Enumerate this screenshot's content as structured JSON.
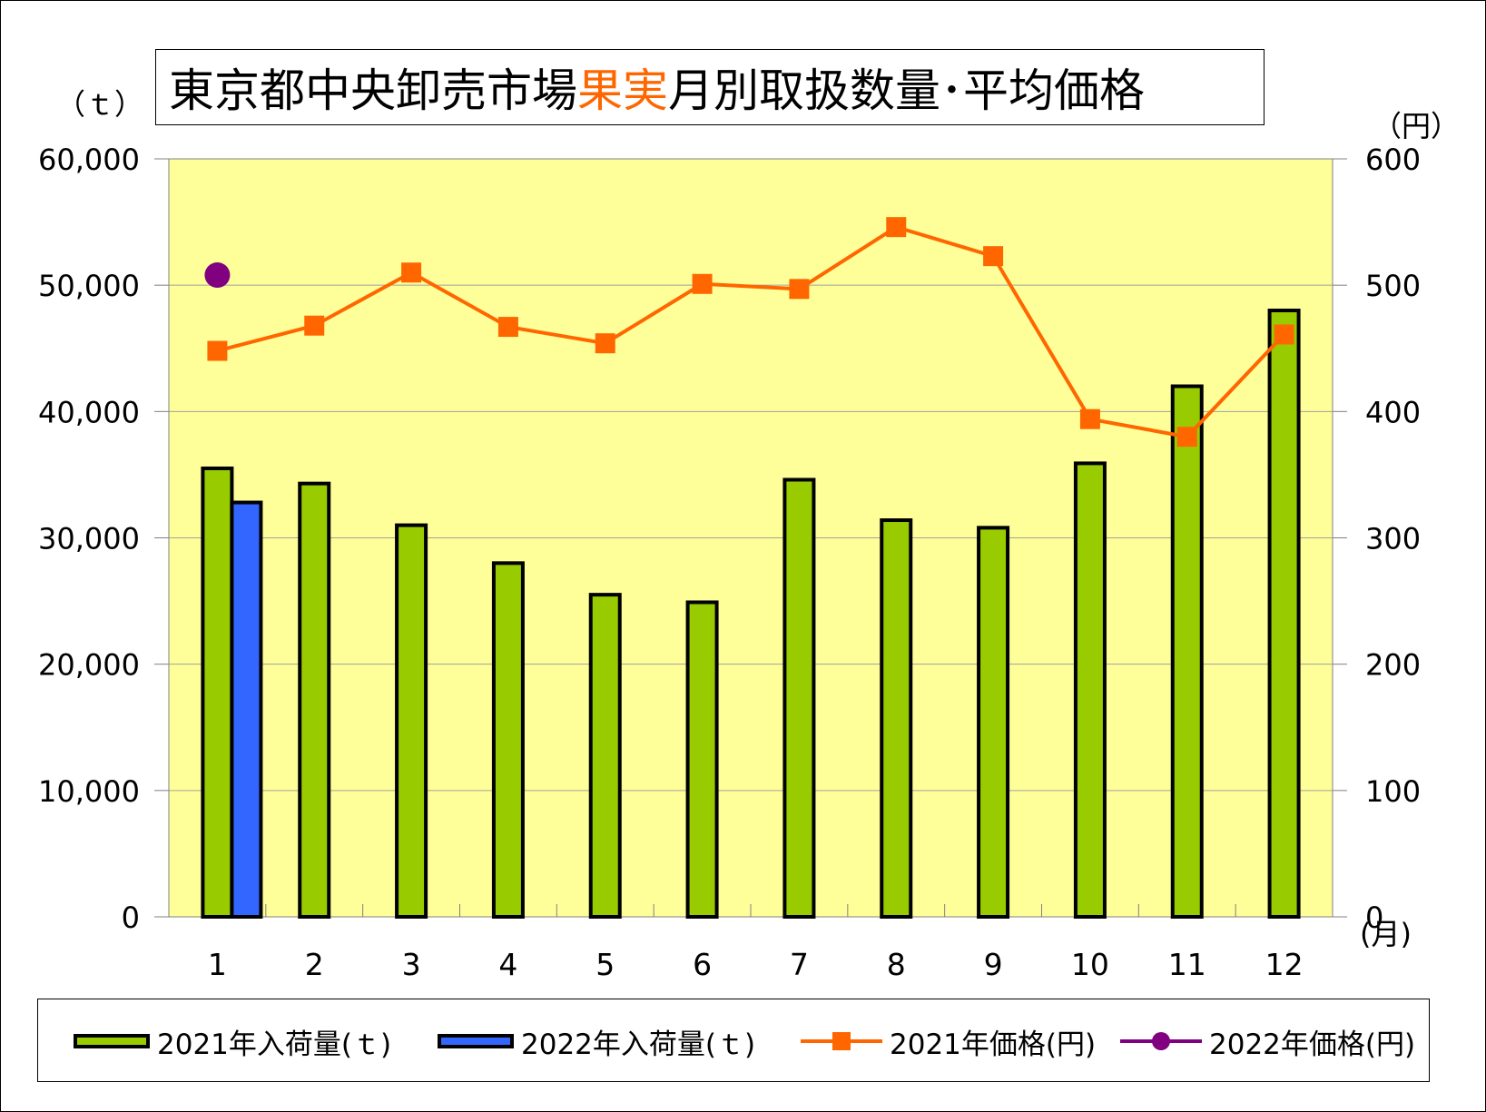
{
  "title": {
    "part1": "東京都中央卸売市場 ",
    "accent": "果実",
    "part2": "月別取扱数量･平均価格"
  },
  "units": {
    "left": "（ｔ）",
    "right": "（円）",
    "x": "(月)"
  },
  "colors": {
    "plot_bg": "#ffff99",
    "bar2021": "#99cc00",
    "bar2022": "#3366ff",
    "line2021": "#ff6600",
    "point2022": "#800080",
    "grid": "#a0a0a0"
  },
  "legend": [
    {
      "label": "2021年入荷量(ｔ)"
    },
    {
      "label": "2022年入荷量(ｔ)"
    },
    {
      "label": "2021年価格(円)"
    },
    {
      "label": "2022年価格(円)"
    }
  ],
  "chart_data": {
    "type": "bar",
    "categories": [
      "1",
      "2",
      "3",
      "4",
      "5",
      "6",
      "7",
      "8",
      "9",
      "10",
      "11",
      "12"
    ],
    "y_left": {
      "min": 0,
      "max": 60000,
      "ticks": [
        "0",
        "10,000",
        "20,000",
        "30,000",
        "40,000",
        "50,000",
        "60,000"
      ]
    },
    "y_right": {
      "min": 0,
      "max": 600,
      "ticks": [
        "0",
        "100",
        "200",
        "300",
        "400",
        "500",
        "600"
      ]
    },
    "grid": true,
    "legend_position": "bottom",
    "series": [
      {
        "name": "2021年入荷量(ｔ)",
        "type": "bar",
        "axis": "left",
        "values": [
          35500,
          34300,
          31000,
          28000,
          25500,
          24900,
          34600,
          31400,
          30800,
          35900,
          42000,
          48000
        ]
      },
      {
        "name": "2022年入荷量(ｔ)",
        "type": "bar",
        "axis": "left",
        "values": [
          32800,
          null,
          null,
          null,
          null,
          null,
          null,
          null,
          null,
          null,
          null,
          null
        ]
      },
      {
        "name": "2021年価格(円)",
        "type": "line",
        "axis": "right",
        "values": [
          448,
          468,
          510,
          467,
          454,
          501,
          497,
          546,
          523,
          394,
          380,
          461
        ]
      },
      {
        "name": "2022年価格(円)",
        "type": "line",
        "axis": "right",
        "values": [
          508,
          null,
          null,
          null,
          null,
          null,
          null,
          null,
          null,
          null,
          null,
          null
        ]
      }
    ]
  }
}
